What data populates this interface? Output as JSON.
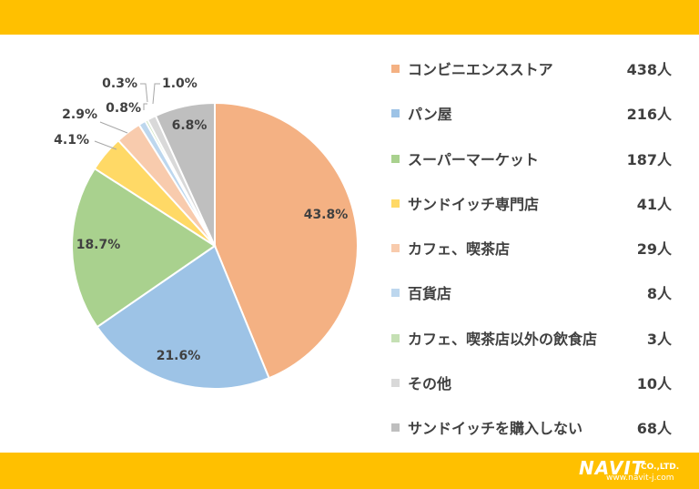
{
  "chart_data": {
    "type": "pie",
    "title": "",
    "slices": [
      {
        "label": "コンビニエンスストア",
        "count": "438人",
        "percent": 43.8,
        "percent_label": "43.8%",
        "color": "#F4B183"
      },
      {
        "label": "パン屋",
        "count": "216人",
        "percent": 21.6,
        "percent_label": "21.6%",
        "color": "#9DC3E6"
      },
      {
        "label": "スーパーマーケット",
        "count": "187人",
        "percent": 18.7,
        "percent_label": "18.7%",
        "color": "#A9D18E"
      },
      {
        "label": "サンドイッチ専門店",
        "count": "41人",
        "percent": 4.1,
        "percent_label": "4.1%",
        "color": "#FFD966"
      },
      {
        "label": "カフェ、喫茶店",
        "count": "29人",
        "percent": 2.9,
        "percent_label": "2.9%",
        "color": "#F8CBAD"
      },
      {
        "label": "百貨店",
        "count": "8人",
        "percent": 0.8,
        "percent_label": "0.8%",
        "color": "#BDD7EE"
      },
      {
        "label": "カフェ、喫茶店以外の飲食店",
        "count": "3人",
        "percent": 0.3,
        "percent_label": "0.3%",
        "color": "#C5E0B4"
      },
      {
        "label": "その他",
        "count": "10人",
        "percent": 1.0,
        "percent_label": "1.0%",
        "color": "#D9D9D9"
      },
      {
        "label": "サンドイッチを購入しない",
        "count": "68人",
        "percent": 6.8,
        "percent_label": "6.8%",
        "color": "#BFBFBF"
      }
    ],
    "legend_position": "right"
  },
  "branding": {
    "logo_text": "NAVIT",
    "logo_suffix": "CO.,LTD.",
    "url": "www.navit-j.com"
  },
  "colors": {
    "band": "#FFC000",
    "text": "#404040"
  }
}
